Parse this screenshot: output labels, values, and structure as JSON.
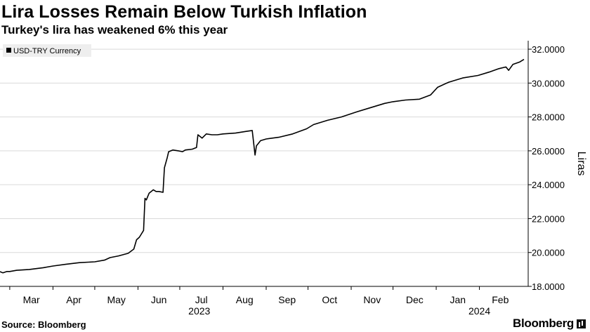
{
  "title": "Lira Losses Remain Below Turkish Inflation",
  "subtitle": "Turkey's lira has weakened 6% this year",
  "source": "Source: Bloomberg",
  "brand": "Bloomberg",
  "chart_data": {
    "type": "line",
    "ylabel": "Liras",
    "ylim": [
      18,
      32.5
    ],
    "yticks": [
      18,
      20,
      22,
      24,
      26,
      28,
      30,
      32
    ],
    "ytick_labels": [
      "18.0000",
      "20.0000",
      "22.0000",
      "24.0000",
      "26.0000",
      "28.0000",
      "30.0000",
      "32.0000"
    ],
    "xlim": [
      "2023-02-22",
      "2024-03-07"
    ],
    "month_labels": [
      "Mar",
      "Apr",
      "May",
      "Jun",
      "Jul",
      "Aug",
      "Sep",
      "Oct",
      "Nov",
      "Dec",
      "Jan",
      "Feb"
    ],
    "month_dates": [
      "2023-03-01",
      "2023-04-01",
      "2023-05-01",
      "2023-06-01",
      "2023-07-01",
      "2023-08-01",
      "2023-09-01",
      "2023-10-01",
      "2023-11-01",
      "2023-12-01",
      "2024-01-01",
      "2024-02-01"
    ],
    "year_labels": [
      {
        "label": "2023",
        "date": "2023-07-15"
      },
      {
        "label": "2024",
        "date": "2024-02-01"
      }
    ],
    "grid": "horizontal",
    "legend_position": "top-left",
    "series": [
      {
        "name": "USD-TRY Currency",
        "color": "#000000",
        "points": [
          [
            "2023-02-22",
            18.87
          ],
          [
            "2023-02-24",
            18.8
          ],
          [
            "2023-02-27",
            18.88
          ],
          [
            "2023-03-01",
            18.88
          ],
          [
            "2023-03-06",
            18.95
          ],
          [
            "2023-03-15",
            19.0
          ],
          [
            "2023-03-25",
            19.1
          ],
          [
            "2023-04-01",
            19.2
          ],
          [
            "2023-04-10",
            19.3
          ],
          [
            "2023-04-20",
            19.4
          ],
          [
            "2023-05-01",
            19.45
          ],
          [
            "2023-05-08",
            19.55
          ],
          [
            "2023-05-12",
            19.7
          ],
          [
            "2023-05-18",
            19.8
          ],
          [
            "2023-05-25",
            19.95
          ],
          [
            "2023-05-29",
            20.2
          ],
          [
            "2023-05-31",
            20.75
          ],
          [
            "2023-06-02",
            20.9
          ],
          [
            "2023-06-05",
            21.3
          ],
          [
            "2023-06-06",
            23.2
          ],
          [
            "2023-06-07",
            23.1
          ],
          [
            "2023-06-09",
            23.5
          ],
          [
            "2023-06-12",
            23.7
          ],
          [
            "2023-06-14",
            23.6
          ],
          [
            "2023-06-16",
            23.6
          ],
          [
            "2023-06-19",
            23.55
          ],
          [
            "2023-06-20",
            25.0
          ],
          [
            "2023-06-22",
            25.6
          ],
          [
            "2023-06-23",
            25.95
          ],
          [
            "2023-06-26",
            26.05
          ],
          [
            "2023-06-30",
            26.0
          ],
          [
            "2023-07-03",
            25.95
          ],
          [
            "2023-07-05",
            26.05
          ],
          [
            "2023-07-10",
            26.1
          ],
          [
            "2023-07-13",
            26.2
          ],
          [
            "2023-07-14",
            26.95
          ],
          [
            "2023-07-17",
            26.75
          ],
          [
            "2023-07-20",
            27.0
          ],
          [
            "2023-07-24",
            26.95
          ],
          [
            "2023-07-28",
            26.95
          ],
          [
            "2023-08-01",
            27.0
          ],
          [
            "2023-08-10",
            27.05
          ],
          [
            "2023-08-18",
            27.15
          ],
          [
            "2023-08-22",
            27.2
          ],
          [
            "2023-08-24",
            25.75
          ],
          [
            "2023-08-25",
            26.3
          ],
          [
            "2023-08-28",
            26.6
          ],
          [
            "2023-09-01",
            26.7
          ],
          [
            "2023-09-10",
            26.8
          ],
          [
            "2023-09-20",
            27.0
          ],
          [
            "2023-09-30",
            27.3
          ],
          [
            "2023-10-05",
            27.55
          ],
          [
            "2023-10-15",
            27.8
          ],
          [
            "2023-10-25",
            28.0
          ],
          [
            "2023-11-05",
            28.3
          ],
          [
            "2023-11-15",
            28.55
          ],
          [
            "2023-11-25",
            28.8
          ],
          [
            "2023-12-01",
            28.9
          ],
          [
            "2023-12-10",
            29.0
          ],
          [
            "2023-12-20",
            29.05
          ],
          [
            "2023-12-28",
            29.3
          ],
          [
            "2024-01-02",
            29.75
          ],
          [
            "2024-01-10",
            30.05
          ],
          [
            "2024-01-20",
            30.3
          ],
          [
            "2024-01-31",
            30.45
          ],
          [
            "2024-02-08",
            30.65
          ],
          [
            "2024-02-15",
            30.85
          ],
          [
            "2024-02-20",
            30.95
          ],
          [
            "2024-02-22",
            30.75
          ],
          [
            "2024-02-25",
            31.1
          ],
          [
            "2024-03-01",
            31.25
          ],
          [
            "2024-03-04",
            31.4
          ]
        ]
      }
    ]
  }
}
